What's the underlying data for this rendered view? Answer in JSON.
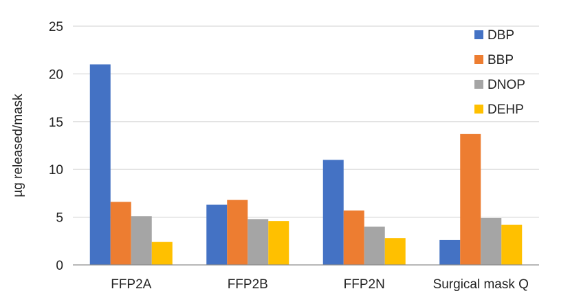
{
  "chart_data": {
    "type": "bar",
    "title": "",
    "xlabel": "",
    "ylabel": "µg released/mask",
    "ylim": [
      0,
      25
    ],
    "yticks": [
      0,
      5,
      10,
      15,
      20,
      25
    ],
    "grid": true,
    "legend_position": "top-right",
    "categories": [
      "FFP2A",
      "FFP2B",
      "FFP2N",
      "Surgical mask Q"
    ],
    "series": [
      {
        "name": "DBP",
        "color": "#4472C4",
        "values": [
          21.0,
          6.3,
          11.0,
          2.6
        ]
      },
      {
        "name": "BBP",
        "color": "#ED7D31",
        "values": [
          6.6,
          6.8,
          5.7,
          13.7
        ]
      },
      {
        "name": "DNOP",
        "color": "#A5A5A5",
        "values": [
          5.1,
          4.8,
          4.0,
          4.9
        ]
      },
      {
        "name": "DEHP",
        "color": "#FFC000",
        "values": [
          2.4,
          4.6,
          2.8,
          4.2
        ]
      }
    ]
  }
}
